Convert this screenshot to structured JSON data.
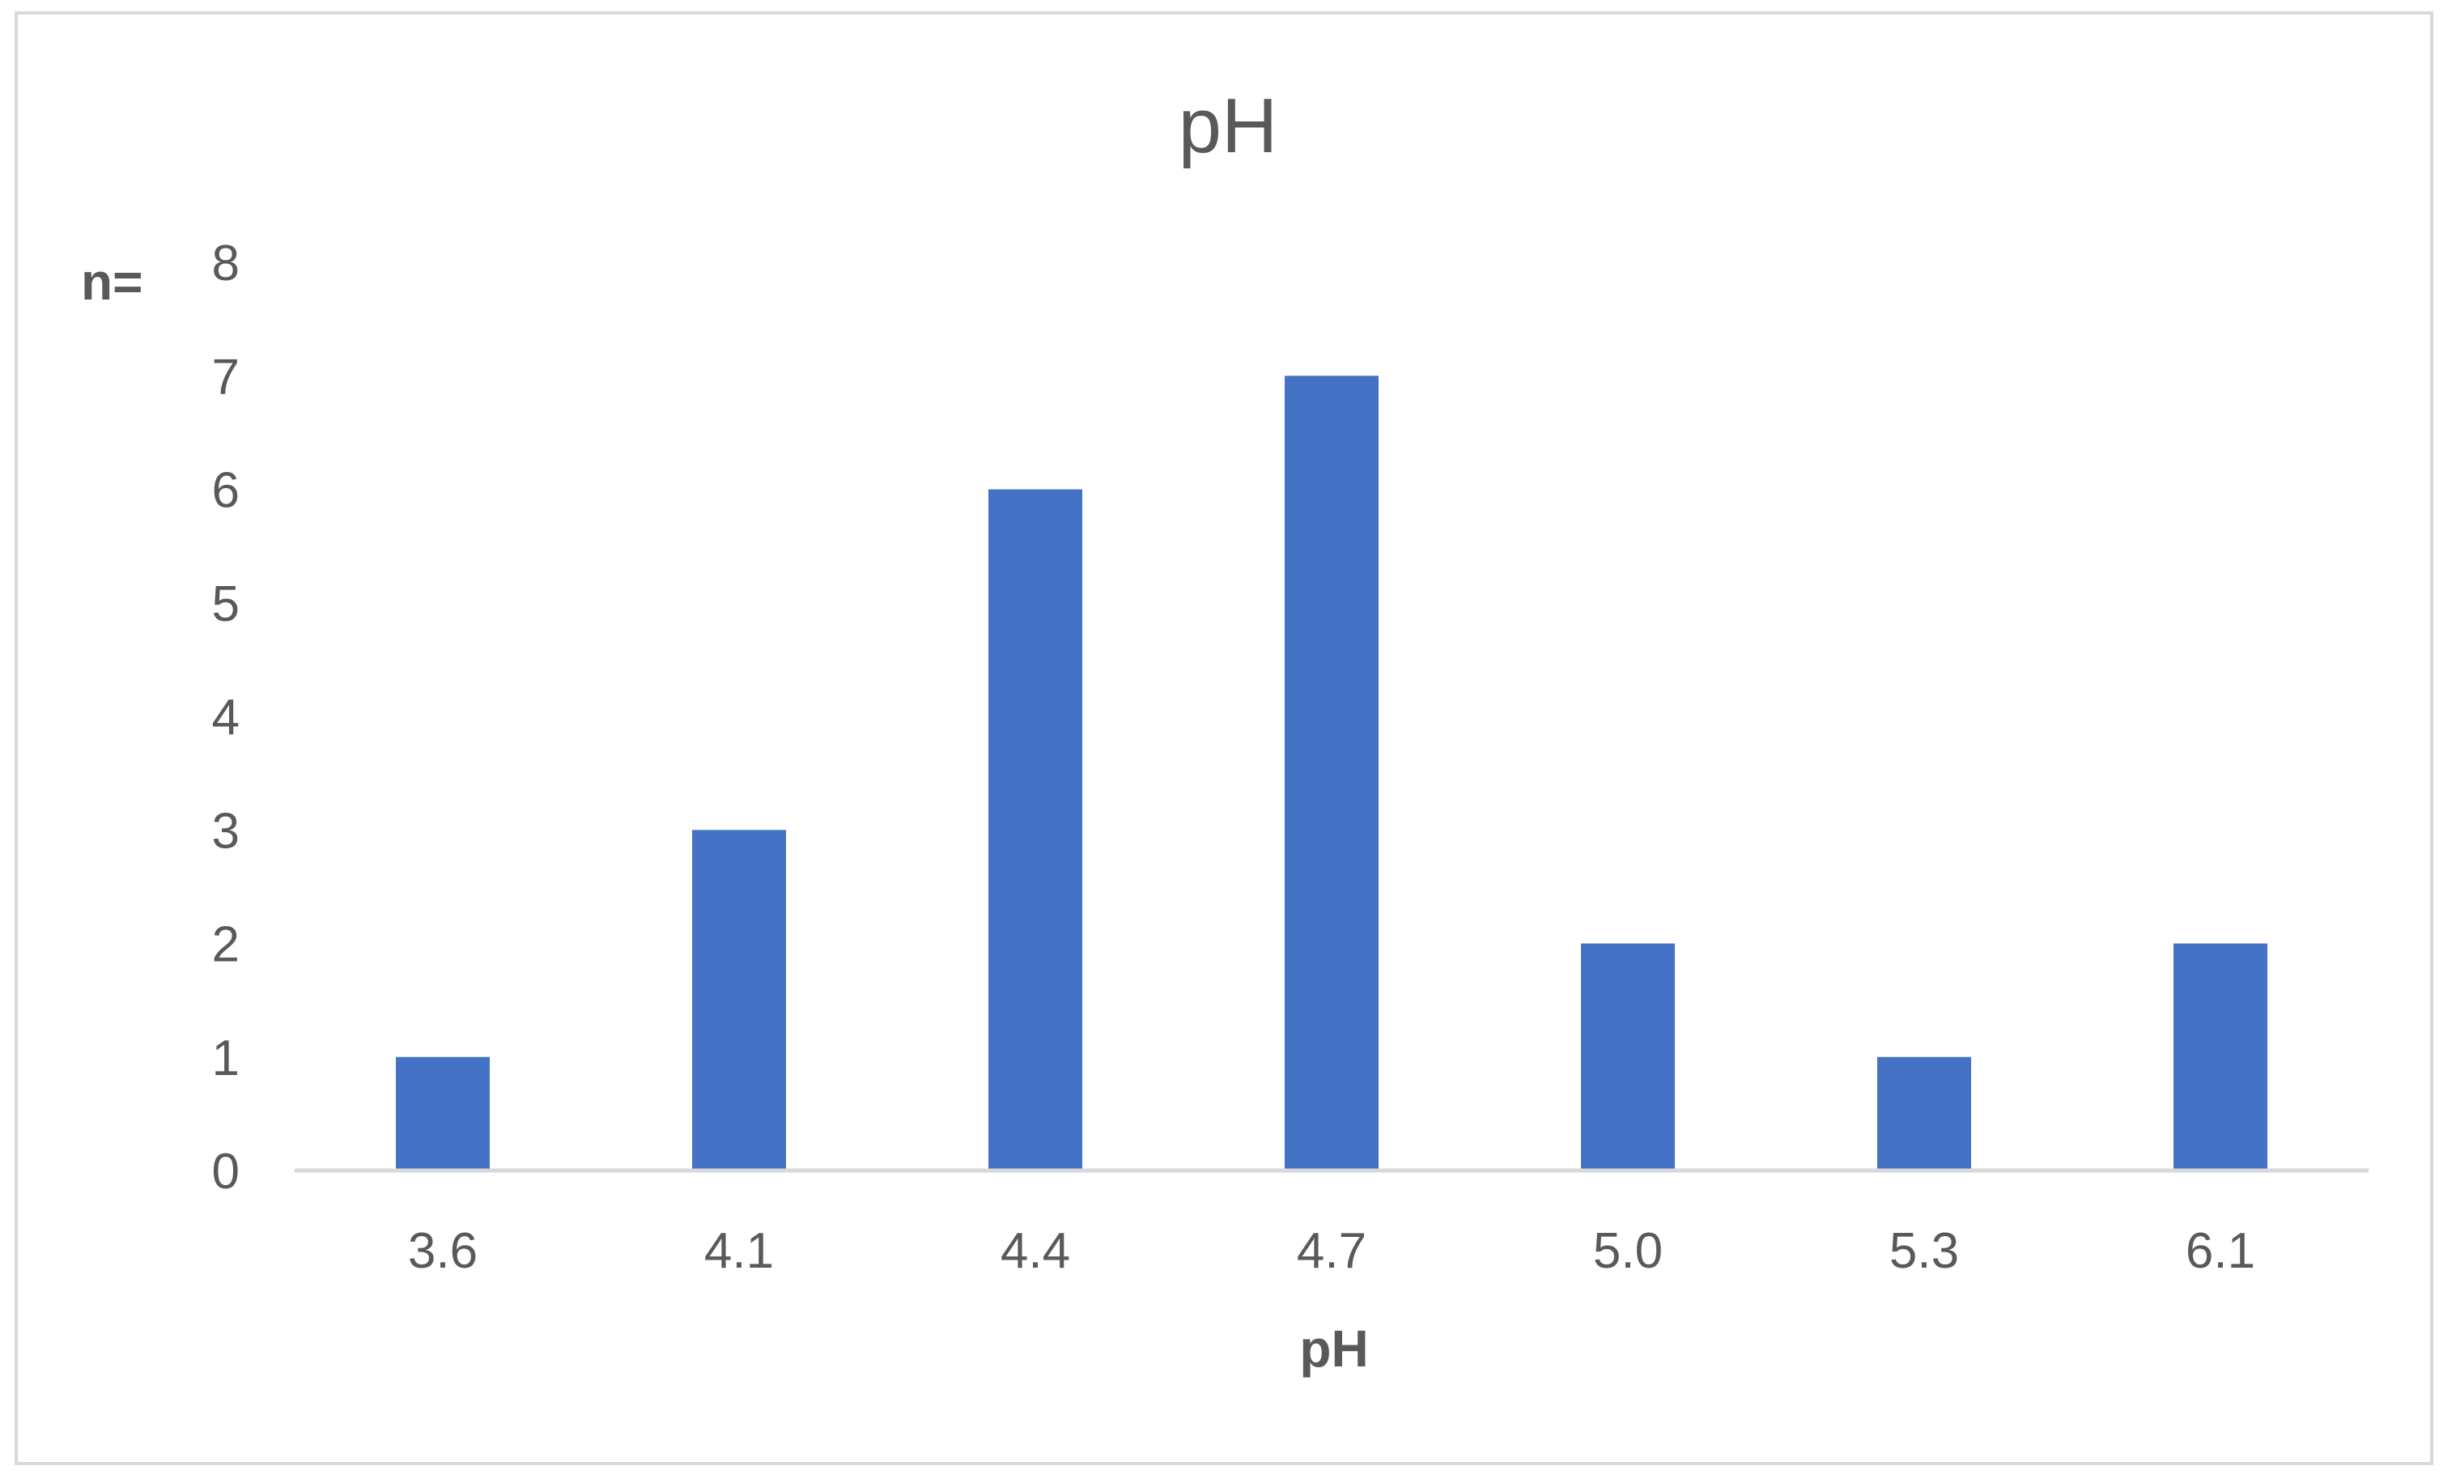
{
  "chart_data": {
    "type": "bar",
    "title": "pH",
    "xlabel": "pH",
    "ylabel": "n=",
    "categories": [
      "3.6",
      "4.1",
      "4.4",
      "4.7",
      "5.0",
      "5.3",
      "6.1"
    ],
    "values": [
      1,
      3,
      6,
      7,
      2,
      1,
      2
    ],
    "ylim": [
      0,
      8
    ],
    "yticks": [
      "0",
      "1",
      "2",
      "3",
      "4",
      "5",
      "6",
      "7",
      "8"
    ],
    "grid": false,
    "legend": "none",
    "colors": {
      "bar": "#4472c4",
      "axis": "#d9d9d9",
      "text": "#595959"
    }
  }
}
